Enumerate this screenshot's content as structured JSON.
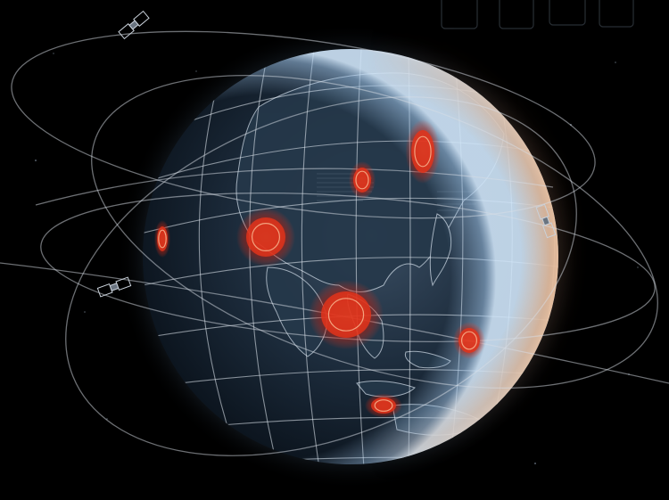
{
  "scene": {
    "subject": "globe",
    "colors": {
      "background": "#000000",
      "ocean_dark": "#0d1824",
      "ocean_mid": "#2a3c50",
      "rim_blue": "#9fc3e6",
      "rim_orange": "#f08a3a",
      "grid_line": "#e8eef5",
      "hotspot_core": "#ff3a1e",
      "hotspot_ring": "#ff6a3c"
    },
    "icons": [
      "satellite-icon",
      "satellite-icon",
      "satellite-icon"
    ]
  },
  "hotspots": [
    {
      "name": "hotspot-northeast"
    },
    {
      "name": "hotspot-central-north"
    },
    {
      "name": "hotspot-west"
    },
    {
      "name": "hotspot-southeast-asia"
    },
    {
      "name": "hotspot-pacific"
    },
    {
      "name": "hotspot-indonesia"
    },
    {
      "name": "hotspot-far-west"
    }
  ]
}
